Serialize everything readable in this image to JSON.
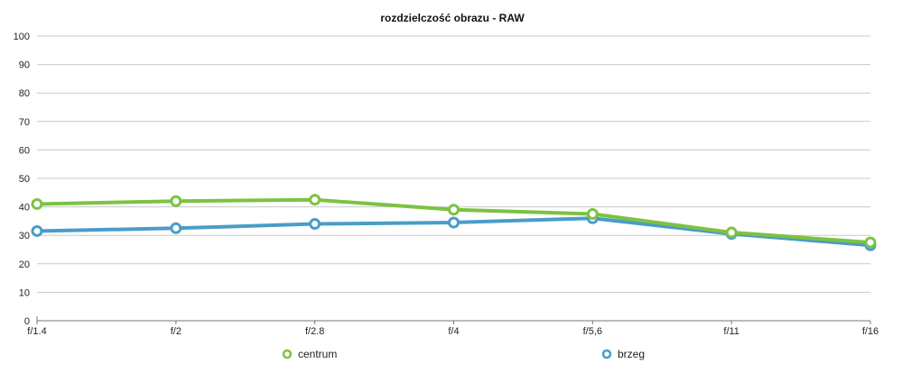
{
  "chart_data": {
    "type": "line",
    "title": "rozdzielczość obrazu - RAW",
    "xlabel": "",
    "ylabel": "",
    "categories": [
      "f/1.4",
      "f/2",
      "f/2.8",
      "f/4",
      "f/5,6",
      "f/11",
      "f/16"
    ],
    "ylim": [
      0,
      100
    ],
    "yticks": [
      0,
      10,
      20,
      30,
      40,
      50,
      60,
      70,
      80,
      90,
      100
    ],
    "grid": true,
    "legend_position": "bottom",
    "series": [
      {
        "name": "centrum",
        "color": "#7dc242",
        "values": [
          41,
          42,
          42.5,
          39,
          37.5,
          31,
          27.5
        ]
      },
      {
        "name": "brzeg",
        "color": "#4a9cc9",
        "values": [
          31.5,
          32.5,
          34,
          34.5,
          36,
          30.5,
          26.5
        ]
      }
    ]
  }
}
